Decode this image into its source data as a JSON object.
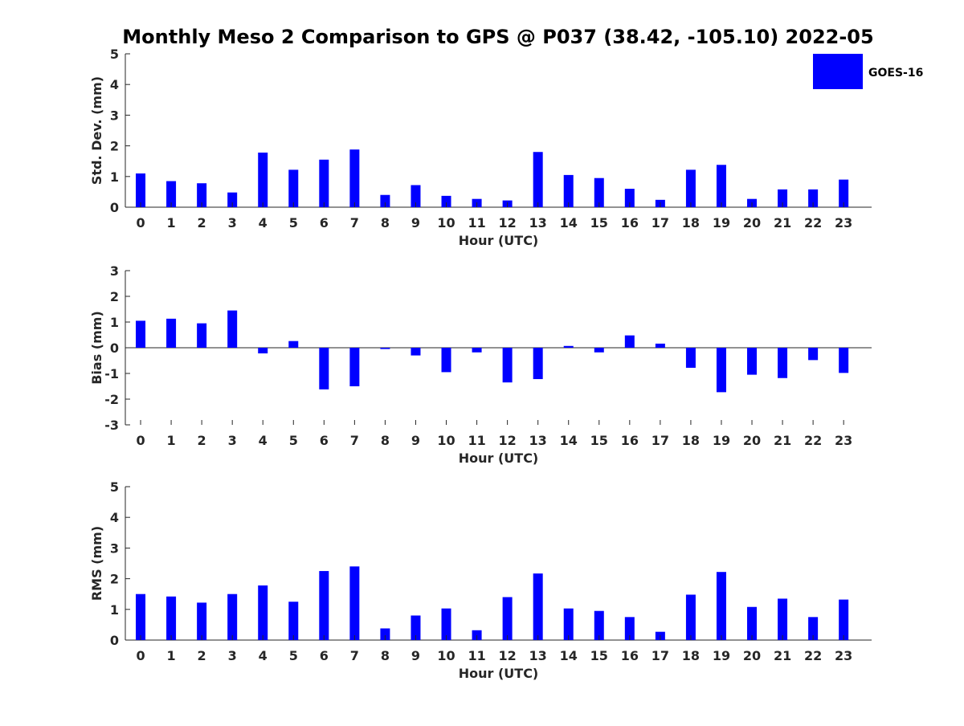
{
  "figure": {
    "title": "Monthly Meso 2 Comparison to GPS @ P037 (38.42, -105.10) 2022-05"
  },
  "legend": {
    "label": "GOES-16",
    "color": "#0000ff",
    "placement": "top-right"
  },
  "chart_data": [
    {
      "type": "bar",
      "name": "std-dev",
      "title": "",
      "xlabel": "Hour (UTC)",
      "ylabel": "Std. Dev. (mm)",
      "categories": [
        "0",
        "1",
        "2",
        "3",
        "4",
        "5",
        "6",
        "7",
        "8",
        "9",
        "10",
        "11",
        "12",
        "13",
        "14",
        "15",
        "16",
        "17",
        "18",
        "19",
        "20",
        "21",
        "22",
        "23"
      ],
      "yticks": [
        "0",
        "1",
        "2",
        "3",
        "4",
        "5"
      ],
      "ylim": [
        0,
        5
      ],
      "series": [
        {
          "name": "GOES-16",
          "color": "#0000ff",
          "values": [
            1.1,
            0.85,
            0.78,
            0.48,
            1.78,
            1.22,
            1.55,
            1.88,
            0.4,
            0.72,
            0.37,
            0.27,
            0.22,
            1.8,
            1.05,
            0.95,
            0.6,
            0.24,
            1.22,
            1.38,
            0.27,
            0.58,
            0.58,
            0.9
          ]
        }
      ]
    },
    {
      "type": "bar",
      "name": "bias",
      "title": "",
      "xlabel": "Hour (UTC)",
      "ylabel": "Bias (mm)",
      "categories": [
        "0",
        "1",
        "2",
        "3",
        "4",
        "5",
        "6",
        "7",
        "8",
        "9",
        "10",
        "11",
        "12",
        "13",
        "14",
        "15",
        "16",
        "17",
        "18",
        "19",
        "20",
        "21",
        "22",
        "23"
      ],
      "yticks": [
        "-3",
        "-2",
        "-1",
        "0",
        "1",
        "2",
        "3"
      ],
      "ylim": [
        -3,
        3
      ],
      "series": [
        {
          "name": "GOES-16",
          "color": "#0000ff",
          "values": [
            1.05,
            1.13,
            0.95,
            1.45,
            -0.22,
            0.26,
            -1.62,
            -1.5,
            -0.05,
            -0.3,
            -0.95,
            -0.18,
            -1.35,
            -1.22,
            0.07,
            -0.18,
            0.48,
            0.16,
            -0.78,
            -1.73,
            -1.05,
            -1.18,
            -0.48,
            -0.98
          ]
        }
      ]
    },
    {
      "type": "bar",
      "name": "rms",
      "title": "",
      "xlabel": "Hour (UTC)",
      "ylabel": "RMS (mm)",
      "categories": [
        "0",
        "1",
        "2",
        "3",
        "4",
        "5",
        "6",
        "7",
        "8",
        "9",
        "10",
        "11",
        "12",
        "13",
        "14",
        "15",
        "16",
        "17",
        "18",
        "19",
        "20",
        "21",
        "22",
        "23"
      ],
      "yticks": [
        "0",
        "1",
        "2",
        "3",
        "4",
        "5"
      ],
      "ylim": [
        0,
        5
      ],
      "series": [
        {
          "name": "GOES-16",
          "color": "#0000ff",
          "values": [
            1.5,
            1.42,
            1.22,
            1.5,
            1.78,
            1.25,
            2.25,
            2.4,
            0.38,
            0.8,
            1.03,
            0.32,
            1.4,
            2.17,
            1.03,
            0.95,
            0.75,
            0.27,
            1.48,
            2.22,
            1.08,
            1.35,
            0.75,
            1.32
          ]
        }
      ]
    }
  ]
}
